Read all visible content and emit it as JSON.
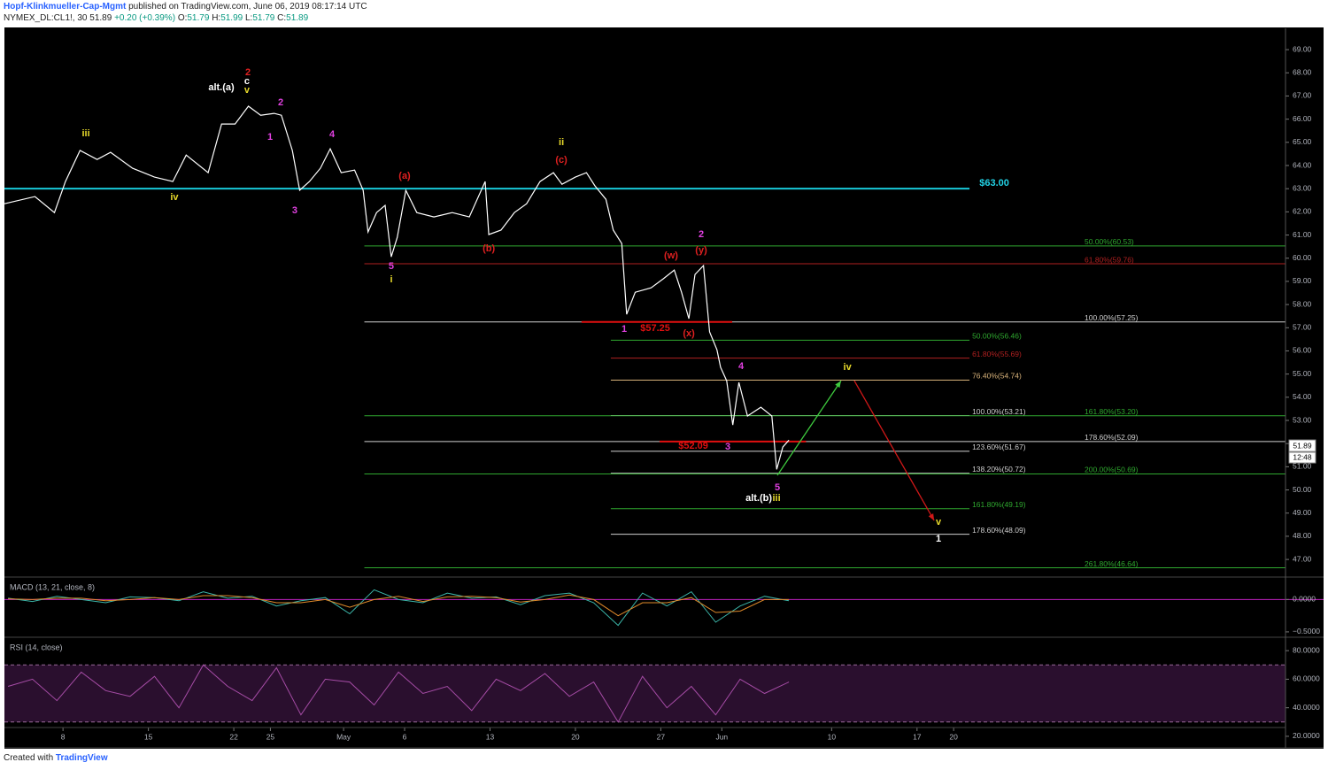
{
  "header": {
    "author": "Hopf-Klinkmueller-Cap-Mgmt",
    "published": "published on TradingView.com, June 06, 2019 08:17:14 UTC",
    "symbol": "NYMEX_DL:CL1!, 30",
    "last": 51.89,
    "change": "+0.20 (+0.39%)",
    "ohlc": [
      {
        "key": "O:",
        "value": 51.79
      },
      {
        "key": "H:",
        "value": 51.99
      },
      {
        "key": "L:",
        "value": 51.79
      },
      {
        "key": "C:",
        "value": 51.89
      }
    ]
  },
  "footer": {
    "created": "Created with",
    "brand": "TradingView"
  },
  "chart_data": [
    {
      "type": "line",
      "xlim": [
        93.2,
        198.2
      ],
      "ylim": [
        46.24,
        69.92
      ],
      "yticks": [
        {
          "value": 69,
          "label": "69.00"
        },
        {
          "value": 68,
          "label": "68.00"
        },
        {
          "value": 67,
          "label": "67.00"
        },
        {
          "value": 66,
          "label": "66.00"
        },
        {
          "value": 65,
          "label": "65.00"
        },
        {
          "value": 64,
          "label": "64.00"
        },
        {
          "value": 63,
          "label": "63.00"
        },
        {
          "value": 62,
          "label": "62.00"
        },
        {
          "value": 61,
          "label": "61.00"
        },
        {
          "value": 60,
          "label": "60.00"
        },
        {
          "value": 59,
          "label": "59.00"
        },
        {
          "value": 58,
          "label": "58.00"
        },
        {
          "value": 57,
          "label": "57.00"
        },
        {
          "value": 56,
          "label": "56.00"
        },
        {
          "value": 55,
          "label": "55.00"
        },
        {
          "value": 54,
          "label": "54.00"
        },
        {
          "value": 53,
          "label": "53.00"
        },
        {
          "value": 52,
          "label": "52.00"
        },
        {
          "value": 51,
          "label": "51.00"
        },
        {
          "value": 50,
          "label": "50.00"
        },
        {
          "value": 49,
          "label": "49.00"
        },
        {
          "value": 48,
          "label": "48.00"
        },
        {
          "value": 47,
          "label": "47.00"
        }
      ],
      "grid": false,
      "last_price": 51.89,
      "countdown": "12:48",
      "x": [
        93.2,
        95.7,
        97.3,
        98.2,
        99.4,
        100.8,
        101.9,
        103.7,
        105.5,
        107.0,
        108.1,
        109.9,
        111.0,
        112.1,
        113.2,
        114.2,
        115.3,
        115.9,
        116.8,
        117.4,
        118.2,
        119.1,
        119.9,
        120.8,
        121.9,
        122.6,
        123.0,
        123.7,
        124.4,
        124.9,
        125.4,
        126.1,
        127.0,
        128.4,
        129.9,
        131.3,
        132.6,
        132.9,
        133.9,
        135.0,
        136.0,
        137.1,
        138.2,
        138.9,
        140.0,
        140.9,
        141.6,
        142.5,
        143.1,
        143.8,
        144.2,
        144.9,
        146.2,
        147.2,
        148.1,
        148.7,
        149.3,
        149.8,
        150.5,
        151.0,
        151.6,
        151.9,
        152.4,
        152.9,
        153.4,
        154.1,
        155.2,
        156.1,
        156.5,
        157.0,
        157.5
      ],
      "series": [
        {
          "color": "#ffffff",
          "values": [
            62.35,
            62.66,
            61.97,
            63.31,
            64.65,
            64.26,
            64.57,
            63.88,
            63.5,
            63.31,
            64.45,
            63.69,
            65.79,
            65.79,
            66.56,
            66.17,
            66.25,
            66.17,
            64.65,
            62.93,
            63.31,
            63.88,
            64.72,
            63.69,
            63.8,
            62.93,
            61.13,
            61.97,
            62.28,
            60.06,
            60.9,
            62.93,
            61.97,
            61.78,
            61.97,
            61.78,
            63.31,
            61.02,
            61.21,
            61.97,
            62.35,
            63.31,
            63.69,
            63.19,
            63.5,
            63.69,
            63.12,
            62.54,
            61.21,
            60.63,
            57.58,
            58.53,
            58.72,
            59.11,
            59.49,
            58.53,
            57.39,
            59.3,
            59.68,
            56.82,
            56.05,
            55.29,
            54.71,
            52.8,
            54.64,
            53.19,
            53.57,
            53.19,
            50.89,
            51.85,
            52.15
          ]
        }
      ],
      "levels": [
        {
          "value": 63.0,
          "color": "#18c8d8",
          "from": 93.2,
          "to": 172.3
        },
        {
          "value": 60.53,
          "color": "#2fa82f",
          "from": 122.7,
          "to": 198.2,
          "label": "50.00%(60.53)"
        },
        {
          "value": 59.76,
          "color": "#b02020",
          "from": 122.7,
          "to": 198.2,
          "label": "61.80%(59.76)"
        },
        {
          "value": 57.25,
          "color": "#cfcfcf",
          "from": 122.7,
          "to": 198.2,
          "label": "100.00%(57.25)"
        },
        {
          "value": 56.46,
          "color": "#2fa82f",
          "from": 142.9,
          "to": 172.3,
          "label": "50.00%(56.46)"
        },
        {
          "value": 55.69,
          "color": "#b02020",
          "from": 142.9,
          "to": 172.3,
          "label": "61.80%(55.69)"
        },
        {
          "value": 54.74,
          "color": "#d8b27a",
          "from": 142.9,
          "to": 172.3,
          "label": "76.40%(54.74)"
        },
        {
          "value": 53.21,
          "color": "#cfcfcf",
          "from": 142.9,
          "to": 172.3,
          "label": "100.00%(53.21)"
        },
        {
          "value": 53.2,
          "color": "#2fa82f",
          "from": 122.7,
          "to": 198.2,
          "label": "161.80%(53.20)"
        },
        {
          "value": 52.09,
          "color": "#cfcfcf",
          "from": 122.7,
          "to": 198.2,
          "label": "178.60%(52.09)"
        },
        {
          "value": 51.67,
          "color": "#cfcfcf",
          "from": 142.9,
          "to": 172.3,
          "label": "123.60%(51.67)"
        },
        {
          "value": 50.72,
          "color": "#cfcfcf",
          "from": 142.9,
          "to": 172.3,
          "label": "138.20%(50.72)"
        },
        {
          "value": 50.69,
          "color": "#2fa82f",
          "from": 122.7,
          "to": 198.2,
          "label": "200.00%(50.69)"
        },
        {
          "value": 49.19,
          "color": "#2fa82f",
          "from": 142.9,
          "to": 172.3,
          "label": "161.80%(49.19)"
        },
        {
          "value": 48.09,
          "color": "#cfcfcf",
          "from": 142.9,
          "to": 172.3,
          "label": "178.60%(48.09)"
        },
        {
          "value": 46.64,
          "color": "#2fa82f",
          "from": 122.7,
          "to": 198.2,
          "label": "261.80%(46.64)"
        },
        {
          "value": 57.25,
          "color": "#e01010",
          "from": 140.5,
          "to": 152.85
        },
        {
          "value": 52.09,
          "color": "#e01010",
          "from": 146.9,
          "to": 158.9
        }
      ],
      "annotations": [
        {
          "text": "2",
          "x": 113.16,
          "y": 68.01,
          "color": "#e02020"
        },
        {
          "text": "c",
          "x": 113.08,
          "y": 67.62,
          "color": "#ffffff"
        },
        {
          "text": "v",
          "x": 113.08,
          "y": 67.24,
          "color": "#e6d82a"
        },
        {
          "text": "alt.(a)",
          "x": 110.98,
          "y": 67.36,
          "color": "#ffffff"
        },
        {
          "text": "iii",
          "x": 99.88,
          "y": 65.37,
          "color": "#e6d82a"
        },
        {
          "text": "2",
          "x": 115.84,
          "y": 66.71,
          "color": "#e040e0"
        },
        {
          "text": "1",
          "x": 114.97,
          "y": 65.22,
          "color": "#e040e0"
        },
        {
          "text": "4",
          "x": 120.05,
          "y": 65.33,
          "color": "#e040e0"
        },
        {
          "text": "3",
          "x": 117.0,
          "y": 62.05,
          "color": "#e040e0"
        },
        {
          "text": "iv",
          "x": 107.13,
          "y": 62.62,
          "color": "#e6d82a"
        },
        {
          "text": "(a)",
          "x": 126.0,
          "y": 63.54,
          "color": "#e02020"
        },
        {
          "text": "ii",
          "x": 138.85,
          "y": 64.99,
          "color": "#e6d82a"
        },
        {
          "text": "(c)",
          "x": 138.85,
          "y": 64.23,
          "color": "#e02020"
        },
        {
          "text": "(b)",
          "x": 132.9,
          "y": 60.41,
          "color": "#e02020"
        },
        {
          "text": "5",
          "x": 124.91,
          "y": 59.64,
          "color": "#e040e0"
        },
        {
          "text": "i",
          "x": 124.91,
          "y": 59.07,
          "color": "#e6d82a"
        },
        {
          "text": "2",
          "x": 150.31,
          "y": 61.02,
          "color": "#e040e0"
        },
        {
          "text": "(y)",
          "x": 150.31,
          "y": 60.33,
          "color": "#e02020"
        },
        {
          "text": "(w)",
          "x": 147.84,
          "y": 60.1,
          "color": "#e02020"
        },
        {
          "text": "(x)",
          "x": 149.3,
          "y": 56.74,
          "color": "#e02020"
        },
        {
          "text": "1",
          "x": 144.0,
          "y": 56.93,
          "color": "#e040e0"
        },
        {
          "text": "$57.25",
          "x": 146.54,
          "y": 56.97,
          "color": "#e01010"
        },
        {
          "text": "4",
          "x": 153.58,
          "y": 55.33,
          "color": "#e040e0"
        },
        {
          "text": "3",
          "x": 152.49,
          "y": 51.85,
          "color": "#e040e0"
        },
        {
          "text": "$52.09",
          "x": 149.66,
          "y": 51.89,
          "color": "#e01010"
        },
        {
          "text": "5",
          "x": 156.55,
          "y": 50.09,
          "color": "#e040e0"
        },
        {
          "text": "alt.(b)",
          "x": 155.03,
          "y": 49.63,
          "color": "#ffffff"
        },
        {
          "text": "iii",
          "x": 156.48,
          "y": 49.63,
          "color": "#e6d82a"
        },
        {
          "text": "iv",
          "x": 162.29,
          "y": 55.29,
          "color": "#e6d82a"
        },
        {
          "text": "v",
          "x": 169.76,
          "y": 48.6,
          "color": "#e6d82a"
        },
        {
          "text": "1",
          "x": 169.76,
          "y": 47.88,
          "color": "#ffffff"
        },
        {
          "text": "$63.00",
          "x": 174.33,
          "y": 63.23,
          "color": "#22d3e6"
        }
      ],
      "arrows": [
        {
          "from": [
            156.55,
            50.63
          ],
          "to": [
            161.77,
            54.71
          ],
          "color": "#3ec93e"
        },
        {
          "from": [
            162.86,
            54.71
          ],
          "to": [
            169.4,
            48.68
          ],
          "color": "#d01818"
        }
      ]
    },
    {
      "type": "line",
      "title": "MACD (13, 21, close, 8)",
      "xlim": [
        93.2,
        198.2
      ],
      "ylim": [
        -0.583,
        0.347
      ],
      "yticks": [
        {
          "value": 0,
          "label": "0.0000"
        },
        {
          "value": -0.5,
          "label": "−0.5000"
        }
      ],
      "zero_line": {
        "value": 0,
        "color": "#c020c0"
      },
      "x": [
        93.5,
        95.5,
        97.5,
        99.5,
        101.5,
        103.5,
        105.5,
        107.5,
        109.5,
        111.5,
        113.5,
        115.5,
        117.5,
        119.5,
        121.5,
        123.5,
        125.5,
        127.5,
        129.5,
        131.5,
        133.5,
        135.5,
        137.5,
        139.5,
        141.5,
        143.5,
        145.5,
        147.5,
        149.5,
        151.5,
        153.5,
        155.5,
        157.5
      ],
      "series": [
        {
          "color": "#3bb5a8",
          "values": [
            0.02,
            -0.03,
            0.05,
            0.0,
            -0.05,
            0.04,
            0.03,
            -0.02,
            0.12,
            0.02,
            0.05,
            -0.1,
            -0.02,
            0.03,
            -0.22,
            0.15,
            0.0,
            -0.05,
            0.1,
            0.02,
            0.04,
            -0.08,
            0.06,
            0.1,
            -0.05,
            -0.4,
            0.1,
            -0.1,
            0.12,
            -0.35,
            -0.1,
            0.05,
            -0.02
          ]
        },
        {
          "color": "#e08a2a",
          "values": [
            0.01,
            0.0,
            0.02,
            0.02,
            -0.02,
            0.0,
            0.03,
            0.0,
            0.06,
            0.06,
            0.03,
            -0.05,
            -0.05,
            0.0,
            -0.12,
            0.0,
            0.05,
            -0.03,
            0.04,
            0.05,
            0.03,
            -0.04,
            0.0,
            0.07,
            0.0,
            -0.25,
            -0.05,
            -0.05,
            0.03,
            -0.2,
            -0.18,
            0.0,
            0.0
          ]
        }
      ]
    },
    {
      "type": "line",
      "title": "RSI (14, close)",
      "xlim": [
        93.2,
        198.2
      ],
      "ylim": [
        11.9,
        89.4
      ],
      "yticks": [
        {
          "value": 80,
          "label": "80.0000"
        },
        {
          "value": 60,
          "label": "60.0000"
        },
        {
          "value": 40,
          "label": "40.0000"
        },
        {
          "value": 20,
          "label": "20.0000"
        }
      ],
      "band": [
        30,
        70
      ],
      "xticks": [
        {
          "value": 98,
          "label": "8"
        },
        {
          "value": 105,
          "label": "15"
        },
        {
          "value": 112,
          "label": "22"
        },
        {
          "value": 115,
          "label": "25"
        },
        {
          "value": 121,
          "label": "May"
        },
        {
          "value": 126,
          "label": "6"
        },
        {
          "value": 133,
          "label": "13"
        },
        {
          "value": 140,
          "label": "20"
        },
        {
          "value": 147,
          "label": "27"
        },
        {
          "value": 152,
          "label": "Jun"
        },
        {
          "value": 161,
          "label": "10"
        },
        {
          "value": 168,
          "label": "17"
        },
        {
          "value": 171,
          "label": "20"
        }
      ],
      "x": [
        93.5,
        95.5,
        97.5,
        99.5,
        101.5,
        103.5,
        105.5,
        107.5,
        109.5,
        111.5,
        113.5,
        115.5,
        117.5,
        119.5,
        121.5,
        123.5,
        125.5,
        127.5,
        129.5,
        131.5,
        133.5,
        135.5,
        137.5,
        139.5,
        141.5,
        143.5,
        145.5,
        147.5,
        149.5,
        151.5,
        153.5,
        155.5,
        157.5
      ],
      "series": [
        {
          "color": "#a64ca6",
          "values": [
            55,
            60,
            45,
            65,
            52,
            48,
            62,
            40,
            70,
            55,
            45,
            68,
            35,
            60,
            58,
            42,
            65,
            50,
            55,
            38,
            60,
            52,
            64,
            48,
            58,
            30,
            62,
            40,
            55,
            35,
            60,
            50,
            58
          ]
        }
      ]
    }
  ]
}
